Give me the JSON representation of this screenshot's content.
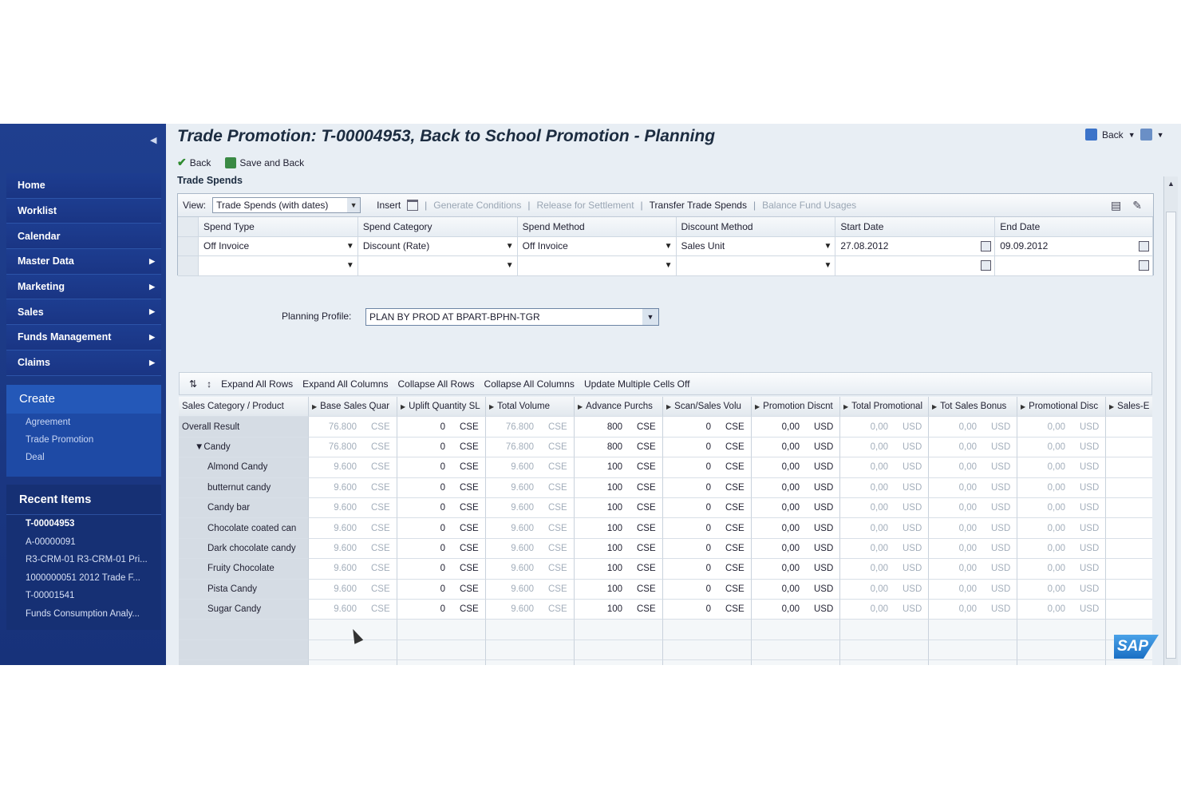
{
  "title": "Trade Promotion: T-00004953, Back to School Promotion - Planning",
  "header_right": {
    "back_label": "Back"
  },
  "toolbar": {
    "back_label": "Back",
    "save_back_label": "Save and Back"
  },
  "trade_spends": {
    "section_title": "Trade Spends",
    "view_label": "View:",
    "view_value": "Trade Spends (with dates)",
    "insert_label": "Insert",
    "generate_conditions": "Generate Conditions",
    "release_settlement": "Release for Settlement",
    "transfer_trade_spends": "Transfer Trade Spends",
    "balance_fund_usages": "Balance Fund Usages",
    "columns": [
      "Spend Type",
      "Spend Category",
      "Spend Method",
      "Discount Method",
      "Start Date",
      "End Date"
    ],
    "row": {
      "spend_type": "Off Invoice",
      "spend_category": "Discount (Rate)",
      "spend_method": "Off Invoice",
      "discount_method": "Sales Unit",
      "start_date": "27.08.2012",
      "end_date": "09.09.2012"
    }
  },
  "planning_profile": {
    "label": "Planning Profile:",
    "value": "PLAN BY PROD AT BPART-BPHN-TGR"
  },
  "grid_toolbar": {
    "expand_rows": "Expand All Rows",
    "expand_cols": "Expand All Columns",
    "collapse_rows": "Collapse All Rows",
    "collapse_cols": "Collapse All Columns",
    "update_multiple": "Update Multiple Cells Off"
  },
  "grid": {
    "label_header": "Sales Category / Product",
    "columns": [
      "Base Sales Quar",
      "Uplift Quantity SL",
      "Total Volume",
      "Advance Purchs",
      "Scan/Sales Volu",
      "Promotion Discnt",
      "Total Promotional",
      "Tot Sales Bonus",
      "Promotional Disc",
      "Sales-E"
    ],
    "rows": [
      {
        "label": "Overall Result",
        "indent": 0,
        "base": "76.800",
        "uplift": "0",
        "total": "76.800",
        "advance": "800",
        "scan": "0"
      },
      {
        "label": "Candy",
        "indent": 1,
        "base": "76.800",
        "uplift": "0",
        "total": "76.800",
        "advance": "800",
        "scan": "0"
      },
      {
        "label": "Almond Candy",
        "indent": 2,
        "base": "9.600",
        "uplift": "0",
        "total": "9.600",
        "advance": "100",
        "scan": "0"
      },
      {
        "label": "butternut candy",
        "indent": 2,
        "base": "9.600",
        "uplift": "0",
        "total": "9.600",
        "advance": "100",
        "scan": "0"
      },
      {
        "label": "Candy bar",
        "indent": 2,
        "base": "9.600",
        "uplift": "0",
        "total": "9.600",
        "advance": "100",
        "scan": "0"
      },
      {
        "label": "Chocolate coated can",
        "indent": 2,
        "base": "9.600",
        "uplift": "0",
        "total": "9.600",
        "advance": "100",
        "scan": "0"
      },
      {
        "label": "Dark chocolate candy",
        "indent": 2,
        "base": "9.600",
        "uplift": "0",
        "total": "9.600",
        "advance": "100",
        "scan": "0"
      },
      {
        "label": "Fruity Chocolate",
        "indent": 2,
        "base": "9.600",
        "uplift": "0",
        "total": "9.600",
        "advance": "100",
        "scan": "0"
      },
      {
        "label": "Pista Candy",
        "indent": 2,
        "base": "9.600",
        "uplift": "0",
        "total": "9.600",
        "advance": "100",
        "scan": "0"
      },
      {
        "label": "Sugar Candy",
        "indent": 2,
        "base": "9.600",
        "uplift": "0",
        "total": "9.600",
        "advance": "100",
        "scan": "0"
      }
    ],
    "unit_cse": "CSE",
    "unit_usd": "USD",
    "money_value": "0,00",
    "partial_value": "0,0"
  },
  "sidebar": {
    "nav": [
      {
        "label": "Home",
        "arrow": false
      },
      {
        "label": "Worklist",
        "arrow": false
      },
      {
        "label": "Calendar",
        "arrow": false
      },
      {
        "label": "Master Data",
        "arrow": true
      },
      {
        "label": "Marketing",
        "arrow": true
      },
      {
        "label": "Sales",
        "arrow": true
      },
      {
        "label": "Funds Management",
        "arrow": true
      },
      {
        "label": "Claims",
        "arrow": true
      }
    ],
    "create": {
      "title": "Create",
      "links": [
        "Agreement",
        "Trade Promotion",
        "Deal"
      ]
    },
    "recent": {
      "title": "Recent Items",
      "items": [
        "T-00004953",
        "A-00000091",
        "R3-CRM-01 R3-CRM-01 Pri...",
        "1000000051 2012 Trade F...",
        "T-00001541",
        "Funds Consumption Analy..."
      ]
    }
  },
  "logo": "SAP"
}
